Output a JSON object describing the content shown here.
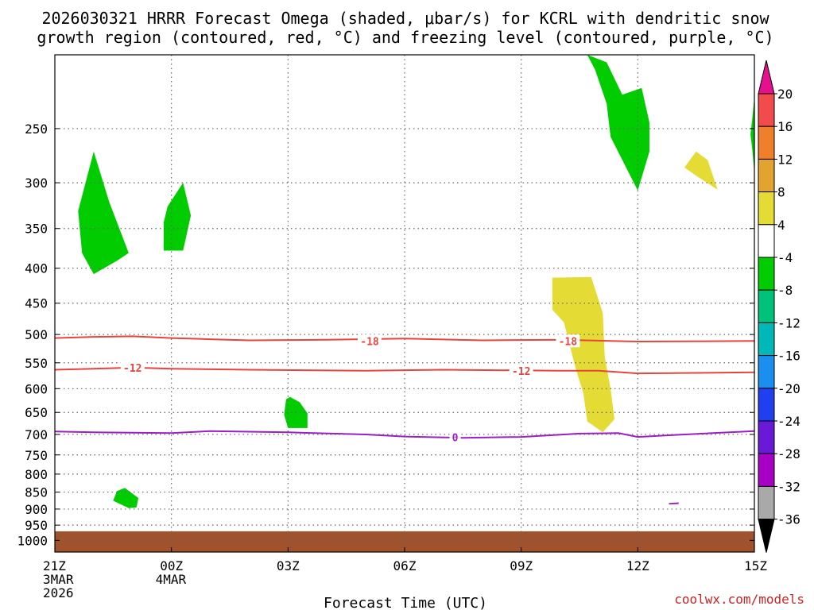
{
  "title_line1": "2026030321 HRRR Forecast Omega (shaded, μbar/s) for KCRL with dendritic snow",
  "title_line2": "growth region (contoured, red, °C) and freezing level (contoured, purple, °C)",
  "credit": "coolwx.com/models",
  "colors": {
    "red_contour": "#e8433e",
    "purple_contour": "#9a1fc4",
    "ground": "#a0522d",
    "positive_omega": "#e4dc35",
    "negative_omega": "#00cc00"
  },
  "chart_data": {
    "type": "time-height",
    "xlabel": "Forecast Time (UTC)",
    "x_range_hours": [
      0,
      18
    ],
    "y_range_hpa": [
      1040,
      195
    ],
    "x_ticks": [
      {
        "hour": 0,
        "lines": [
          "21Z",
          "3MAR",
          "2026"
        ]
      },
      {
        "hour": 3,
        "lines": [
          "00Z",
          "4MAR"
        ]
      },
      {
        "hour": 6,
        "lines": [
          "03Z"
        ]
      },
      {
        "hour": 9,
        "lines": [
          "06Z"
        ]
      },
      {
        "hour": 12,
        "lines": [
          "09Z"
        ]
      },
      {
        "hour": 15,
        "lines": [
          "12Z"
        ]
      },
      {
        "hour": 18,
        "lines": [
          "15Z"
        ]
      }
    ],
    "y_ticks": [
      {
        "p": 250,
        "label": "250"
      },
      {
        "p": 300,
        "label": "300"
      },
      {
        "p": 350,
        "label": "350"
      },
      {
        "p": 400,
        "label": "400"
      },
      {
        "p": 450,
        "label": "450"
      },
      {
        "p": 500,
        "label": "500"
      },
      {
        "p": 550,
        "label": "550"
      },
      {
        "p": 600,
        "label": "600"
      },
      {
        "p": 650,
        "label": "650"
      },
      {
        "p": 700,
        "label": "700"
      },
      {
        "p": 750,
        "label": "750"
      },
      {
        "p": 800,
        "label": "800"
      },
      {
        "p": 850,
        "label": "850"
      },
      {
        "p": 900,
        "label": "900"
      },
      {
        "p": 950,
        "label": "950"
      },
      {
        "p": 1000,
        "label": "1000"
      }
    ],
    "ground_pressure_hpa": 970,
    "contours": [
      {
        "name": "-18C isotherm",
        "label": "-18",
        "color": "#e8433e",
        "points": [
          [
            0,
            506
          ],
          [
            1,
            504
          ],
          [
            2,
            503
          ],
          [
            3,
            506
          ],
          [
            4,
            508
          ],
          [
            5,
            510
          ],
          [
            7,
            509
          ],
          [
            9,
            507
          ],
          [
            11,
            510
          ],
          [
            13,
            509
          ],
          [
            15,
            512
          ],
          [
            18,
            511
          ]
        ],
        "label_at": [
          [
            8.1,
            511
          ],
          [
            13.2,
            511
          ]
        ]
      },
      {
        "name": "-12C isotherm",
        "label": "-12",
        "color": "#e8433e",
        "points": [
          [
            0,
            563
          ],
          [
            1,
            561
          ],
          [
            2,
            559
          ],
          [
            3,
            561
          ],
          [
            5,
            563
          ],
          [
            8,
            565
          ],
          [
            10,
            563
          ],
          [
            13,
            565
          ],
          [
            14,
            565
          ],
          [
            15,
            570
          ],
          [
            18,
            568
          ]
        ],
        "label_at": [
          [
            2,
            559
          ],
          [
            12,
            565
          ]
        ]
      },
      {
        "name": "0C freezing level",
        "label": "0",
        "color": "#9a1fc4",
        "points": [
          [
            0,
            693
          ],
          [
            1,
            695
          ],
          [
            3,
            697
          ],
          [
            4,
            692
          ],
          [
            6,
            695
          ],
          [
            8,
            700
          ],
          [
            9,
            705
          ],
          [
            10.5,
            708
          ],
          [
            12,
            706
          ],
          [
            13.5,
            698
          ],
          [
            14.5,
            697
          ],
          [
            15,
            706
          ],
          [
            16,
            701
          ],
          [
            18,
            692
          ]
        ],
        "label_at": [
          [
            10.3,
            707
          ]
        ]
      }
    ],
    "shaded_regions": [
      {
        "name": "omega -4 to -8 (upper left)",
        "range": "-4 to -8",
        "color": "#00cc00",
        "points": [
          [
            1,
            270
          ],
          [
            1.4,
            320
          ],
          [
            1.9,
            380
          ],
          [
            1.6,
            390
          ],
          [
            1,
            408
          ],
          [
            0.7,
            380
          ],
          [
            0.6,
            330
          ]
        ]
      },
      {
        "name": "omega -4 to -8 (350 hPa)",
        "range": "-4 to -8",
        "color": "#00cc00",
        "points": [
          [
            2.9,
            325
          ],
          [
            3.3,
            300
          ],
          [
            3.5,
            335
          ],
          [
            3.3,
            377
          ],
          [
            2.8,
            377
          ],
          [
            2.8,
            343
          ]
        ]
      },
      {
        "name": "omega -4 to -8 (650 hPa)",
        "range": "-4 to -8",
        "color": "#00cc00",
        "points": [
          [
            6.05,
            617
          ],
          [
            6.3,
            628
          ],
          [
            6.5,
            652
          ],
          [
            6.5,
            685
          ],
          [
            6.0,
            685
          ],
          [
            5.9,
            655
          ],
          [
            5.95,
            622
          ]
        ]
      },
      {
        "name": "omega -4 to -8 (860 hPa)",
        "range": "-4 to -8",
        "color": "#00cc00",
        "points": [
          [
            1.6,
            847
          ],
          [
            1.8,
            838
          ],
          [
            2.15,
            867
          ],
          [
            2.1,
            895
          ],
          [
            1.9,
            897
          ],
          [
            1.5,
            875
          ]
        ]
      },
      {
        "name": "omega -4 to -8 (upper right)",
        "range": "-4 to -8",
        "color": "#00cc00",
        "points": [
          [
            13.7,
            195
          ],
          [
            14.2,
            200
          ],
          [
            14.6,
            223
          ],
          [
            15.1,
            218
          ],
          [
            15.3,
            245
          ],
          [
            15.3,
            270
          ],
          [
            15.0,
            308
          ],
          [
            14.3,
            257
          ],
          [
            14.2,
            230
          ],
          [
            13.9,
            205
          ]
        ]
      },
      {
        "name": "omega -4 to -8 (right edge)",
        "range": "-4 to -8",
        "color": "#00cc00",
        "points": [
          [
            17.95,
            240
          ],
          [
            18,
            225
          ],
          [
            18,
            290
          ],
          [
            17.95,
            270
          ],
          [
            17.9,
            255
          ]
        ]
      },
      {
        "name": "omega 4 to 8 (rising column)",
        "range": "4 to 8",
        "color": "#e4dc35",
        "points": [
          [
            12.8,
            413
          ],
          [
            13.8,
            412
          ],
          [
            14.1,
            465
          ],
          [
            14.15,
            540
          ],
          [
            14.3,
            600
          ],
          [
            14.4,
            665
          ],
          [
            14.1,
            695
          ],
          [
            13.7,
            670
          ],
          [
            13.6,
            610
          ],
          [
            13.4,
            560
          ],
          [
            13.1,
            480
          ],
          [
            12.8,
            460
          ]
        ]
      },
      {
        "name": "omega 4 to 8 (upper right)",
        "range": "4 to 8",
        "color": "#e4dc35",
        "points": [
          [
            16.5,
            270
          ],
          [
            16.8,
            278
          ],
          [
            17.05,
            307
          ],
          [
            16.5,
            293
          ],
          [
            16.2,
            285
          ]
        ]
      },
      {
        "name": "omega -28 to -32 (small)",
        "range": "-28 to -32",
        "color": "#9a1fc4",
        "points": [
          [
            15.8,
            882
          ],
          [
            16.05,
            880
          ],
          [
            16.05,
            885
          ],
          [
            15.8,
            886
          ]
        ]
      }
    ],
    "colorbar": {
      "levels": [
        "20",
        "16",
        "12",
        "8",
        "4",
        "-4",
        "-8",
        "-12",
        "-16",
        "-20",
        "-24",
        "-28",
        "-32",
        "-36"
      ],
      "colors": [
        "#e60f8d",
        "#f14b4b",
        "#f07f2b",
        "#e3a42f",
        "#e4dc35",
        "#ffffff",
        "#00cc00",
        "#00c27a",
        "#00b8b8",
        "#1a8ff0",
        "#1f3ff0",
        "#6a1ad6",
        "#a800c4",
        "#a9a9a9",
        "#000000"
      ]
    }
  }
}
